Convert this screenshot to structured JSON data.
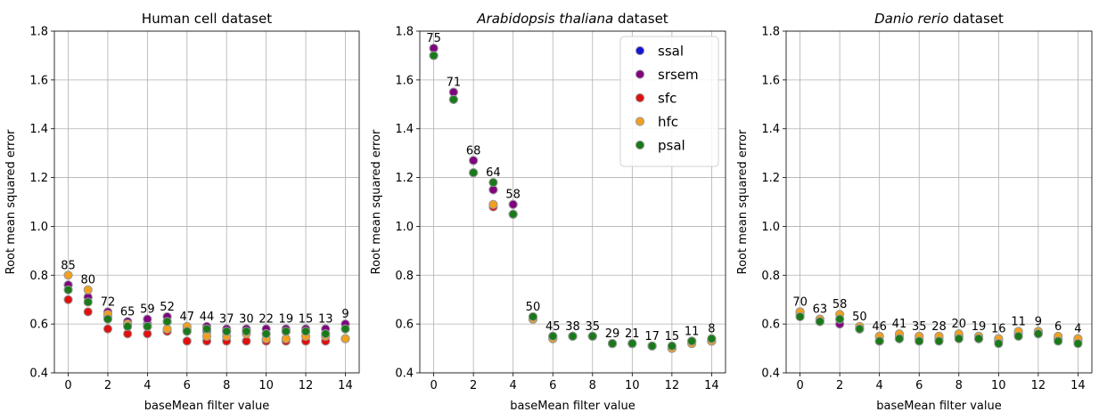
{
  "chart_data": [
    {
      "type": "scatter",
      "title": "Human cell dataset",
      "title_italic": "",
      "title_rest": "Human cell dataset",
      "xlabel": "baseMean filter value",
      "ylabel": "Root mean squared error",
      "xlim": [
        -0.7,
        14.7
      ],
      "ylim": [
        0.4,
        1.8
      ],
      "xticks": [
        0,
        2,
        4,
        6,
        8,
        10,
        12,
        14
      ],
      "yticks": [
        0.4,
        0.6,
        0.8,
        1.0,
        1.2,
        1.4,
        1.6,
        1.8
      ],
      "grid": true,
      "legend": null,
      "x": [
        0,
        1,
        2,
        3,
        4,
        5,
        6,
        7,
        8,
        9,
        10,
        11,
        12,
        13,
        14
      ],
      "counts": [
        85,
        80,
        72,
        65,
        59,
        52,
        47,
        44,
        37,
        30,
        22,
        19,
        15,
        13,
        9
      ],
      "series": [
        {
          "name": "ssal",
          "values": [
            0.76,
            0.71,
            0.63,
            0.6,
            0.6,
            0.61,
            0.57,
            0.57,
            0.57,
            0.57,
            0.56,
            0.57,
            0.57,
            0.56,
            0.58
          ]
        },
        {
          "name": "srsem",
          "values": [
            0.76,
            0.71,
            0.65,
            0.61,
            0.62,
            0.63,
            0.58,
            0.59,
            0.58,
            0.58,
            0.58,
            0.58,
            0.58,
            0.58,
            0.6
          ]
        },
        {
          "name": "sfc",
          "values": [
            0.7,
            0.65,
            0.58,
            0.56,
            0.56,
            0.57,
            0.53,
            0.53,
            0.53,
            0.53,
            0.53,
            0.53,
            0.53,
            0.53,
            0.54
          ]
        },
        {
          "name": "hfc",
          "values": [
            0.8,
            0.74,
            0.64,
            0.6,
            0.59,
            0.58,
            0.59,
            0.55,
            0.55,
            0.56,
            0.54,
            0.54,
            0.55,
            0.55,
            0.54
          ]
        },
        {
          "name": "psal",
          "values": [
            0.74,
            0.69,
            0.62,
            0.59,
            0.59,
            0.61,
            0.57,
            0.58,
            0.57,
            0.57,
            0.56,
            0.57,
            0.57,
            0.56,
            0.58
          ]
        }
      ]
    },
    {
      "type": "scatter",
      "title": "Arabidopsis thaliana dataset",
      "title_italic": "Arabidopsis thaliana",
      "title_rest": " dataset",
      "xlabel": "baseMean filter value",
      "ylabel": "Root mean squared error",
      "xlim": [
        -0.7,
        14.7
      ],
      "ylim": [
        0.4,
        1.8
      ],
      "xticks": [
        0,
        2,
        4,
        6,
        8,
        10,
        12,
        14
      ],
      "yticks": [
        0.4,
        0.6,
        0.8,
        1.0,
        1.2,
        1.4,
        1.6,
        1.8
      ],
      "grid": true,
      "legend": "top-right",
      "x": [
        0,
        1,
        2,
        3,
        4,
        5,
        6,
        7,
        8,
        9,
        10,
        11,
        12,
        13,
        14
      ],
      "counts": [
        75,
        71,
        68,
        64,
        58,
        50,
        45,
        38,
        35,
        29,
        21,
        17,
        15,
        11,
        8
      ],
      "series": [
        {
          "name": "ssal",
          "values": [
            1.73,
            1.55,
            1.27,
            1.15,
            1.09,
            0.62,
            0.55,
            0.55,
            0.55,
            0.52,
            0.52,
            0.51,
            0.5,
            0.53,
            0.53
          ]
        },
        {
          "name": "srsem",
          "values": [
            1.73,
            1.55,
            1.27,
            1.15,
            1.09,
            0.62,
            0.55,
            0.55,
            0.55,
            0.52,
            0.52,
            0.51,
            0.5,
            0.53,
            0.53
          ]
        },
        {
          "name": "sfc",
          "values": [
            1.7,
            1.52,
            1.22,
            1.08,
            1.05,
            0.62,
            0.54,
            0.55,
            0.55,
            0.52,
            0.52,
            0.51,
            0.5,
            0.52,
            0.53
          ]
        },
        {
          "name": "hfc",
          "values": [
            1.7,
            1.52,
            1.22,
            1.09,
            1.05,
            0.62,
            0.54,
            0.55,
            0.55,
            0.52,
            0.52,
            0.51,
            0.5,
            0.52,
            0.53
          ]
        },
        {
          "name": "psal",
          "values": [
            1.7,
            1.52,
            1.22,
            1.18,
            1.05,
            0.63,
            0.55,
            0.55,
            0.55,
            0.52,
            0.52,
            0.51,
            0.51,
            0.53,
            0.54
          ]
        }
      ]
    },
    {
      "type": "scatter",
      "title": "Danio rerio dataset",
      "title_italic": "Danio rerio",
      "title_rest": " dataset",
      "xlabel": "baseMean filter value",
      "ylabel": "Root mean squared error",
      "xlim": [
        -0.7,
        14.7
      ],
      "ylim": [
        0.4,
        1.8
      ],
      "xticks": [
        0,
        2,
        4,
        6,
        8,
        10,
        12,
        14
      ],
      "yticks": [
        0.4,
        0.6,
        0.8,
        1.0,
        1.2,
        1.4,
        1.6,
        1.8
      ],
      "grid": true,
      "legend": null,
      "x": [
        0,
        1,
        2,
        3,
        4,
        5,
        6,
        7,
        8,
        9,
        10,
        11,
        12,
        13,
        14
      ],
      "counts": [
        70,
        63,
        58,
        50,
        46,
        41,
        35,
        28,
        20,
        19,
        16,
        11,
        9,
        6,
        4
      ],
      "series": [
        {
          "name": "ssal",
          "values": [
            0.64,
            0.61,
            0.6,
            0.58,
            0.53,
            0.54,
            0.54,
            0.54,
            0.55,
            0.54,
            0.53,
            0.56,
            0.56,
            0.54,
            0.53
          ]
        },
        {
          "name": "srsem",
          "values": [
            0.65,
            0.61,
            0.6,
            0.58,
            0.53,
            0.54,
            0.54,
            0.54,
            0.55,
            0.54,
            0.53,
            0.56,
            0.56,
            0.54,
            0.53
          ]
        },
        {
          "name": "sfc",
          "values": [
            0.65,
            0.62,
            0.62,
            0.58,
            0.55,
            0.55,
            0.55,
            0.55,
            0.55,
            0.55,
            0.54,
            0.56,
            0.57,
            0.54,
            0.54
          ]
        },
        {
          "name": "hfc",
          "values": [
            0.65,
            0.62,
            0.64,
            0.59,
            0.55,
            0.56,
            0.55,
            0.55,
            0.56,
            0.55,
            0.54,
            0.57,
            0.57,
            0.55,
            0.54
          ]
        },
        {
          "name": "psal",
          "values": [
            0.63,
            0.61,
            0.62,
            0.58,
            0.53,
            0.54,
            0.53,
            0.53,
            0.54,
            0.54,
            0.52,
            0.55,
            0.56,
            0.53,
            0.52
          ]
        }
      ]
    }
  ],
  "colors": {
    "ssal": "#1515d6",
    "srsem": "#800080",
    "sfc": "#e01010",
    "hfc": "#f0a020",
    "psal": "#1a7a1a",
    "marker_edge": "#999999",
    "grid": "#b0b0b0"
  }
}
